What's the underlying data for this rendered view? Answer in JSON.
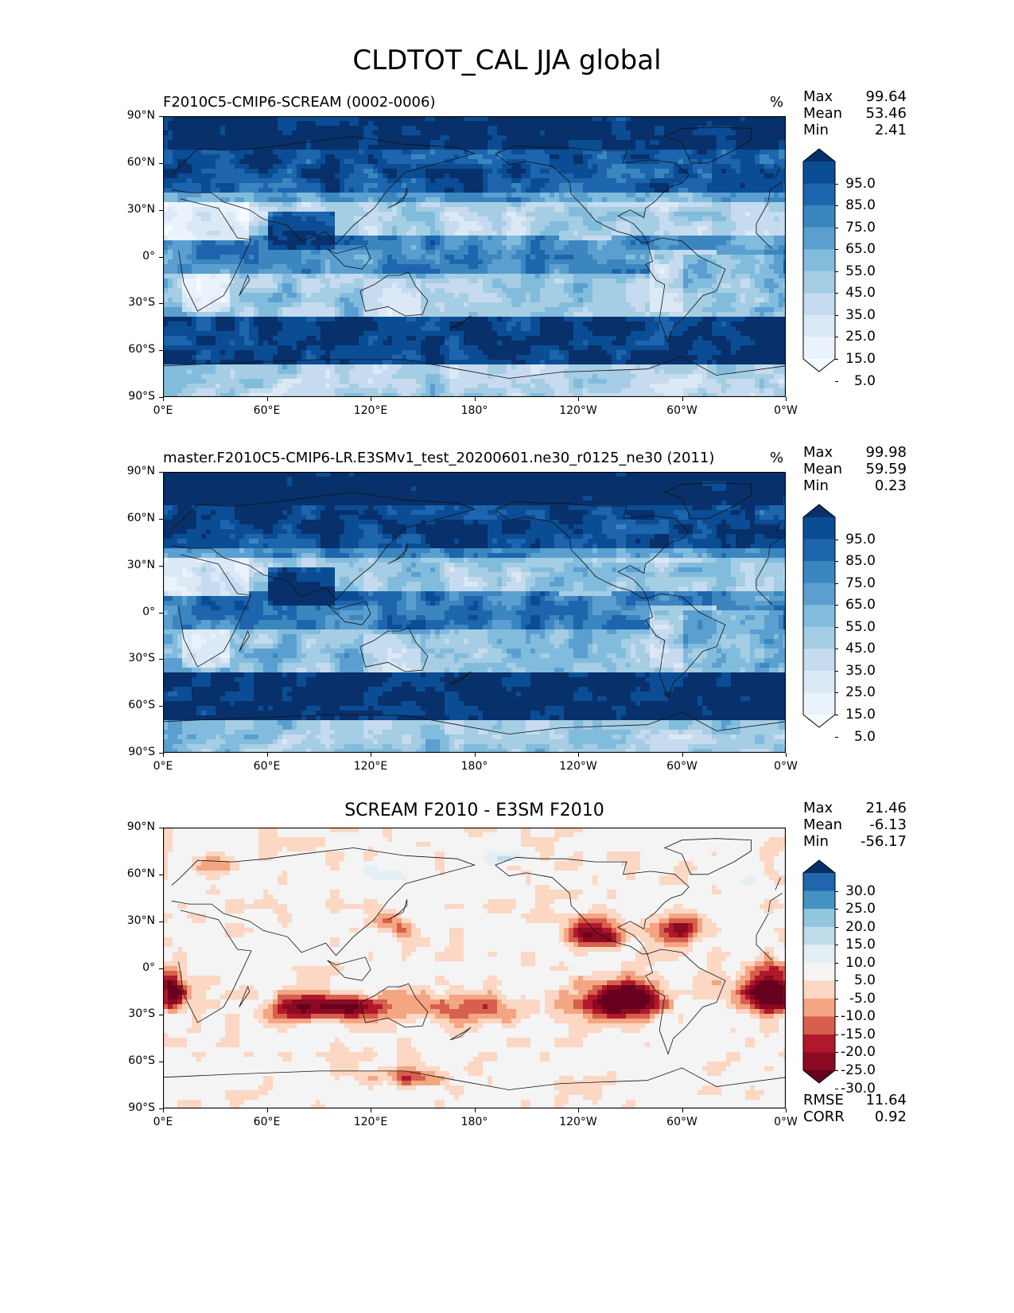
{
  "figure": {
    "title": "CLDTOT_CAL JJA global"
  },
  "panels": [
    {
      "title": "F2010C5-CMIP6-SCREAM (0002-0006)",
      "title_align": "left",
      "units": "%",
      "stats": [
        {
          "label": "Max",
          "value": "99.64"
        },
        {
          "label": "Mean",
          "value": "53.46"
        },
        {
          "label": "Min",
          "value": "2.41"
        }
      ],
      "colorbar": {
        "labels": [
          "95.0",
          "85.0",
          "75.0",
          "65.0",
          "55.0",
          "45.0",
          "35.0",
          "25.0",
          "15.0",
          "5.0"
        ],
        "colors": [
          "#08306b",
          "#0b4d94",
          "#1d65ad",
          "#3c86c0",
          "#5a9fd0",
          "#82bcdd",
          "#a5cde3",
          "#c6dbef",
          "#dbe9f6",
          "#eaf2fb",
          "#f7fbff"
        ]
      },
      "extra_stats": []
    },
    {
      "title": "master.F2010C5-CMIP6-LR.E3SMv1_test_20200601.ne30_r0125_ne30 (2011)",
      "title_align": "left",
      "units": "%",
      "stats": [
        {
          "label": "Max",
          "value": "99.98"
        },
        {
          "label": "Mean",
          "value": "59.59"
        },
        {
          "label": "Min",
          "value": "0.23"
        }
      ],
      "colorbar": {
        "labels": [
          "95.0",
          "85.0",
          "75.0",
          "65.0",
          "55.0",
          "45.0",
          "35.0",
          "25.0",
          "15.0",
          "5.0"
        ],
        "colors": [
          "#08306b",
          "#0b4d94",
          "#1d65ad",
          "#3c86c0",
          "#5a9fd0",
          "#82bcdd",
          "#a5cde3",
          "#c6dbef",
          "#dbe9f6",
          "#eaf2fb",
          "#f7fbff"
        ]
      },
      "extra_stats": []
    },
    {
      "title": "SCREAM F2010 - E3SM F2010",
      "title_align": "center",
      "units": "",
      "stats": [
        {
          "label": "Max",
          "value": "21.46"
        },
        {
          "label": "Mean",
          "value": "-6.13"
        },
        {
          "label": "Min",
          "value": "-56.17"
        }
      ],
      "colorbar": {
        "labels": [
          "30.0",
          "25.0",
          "20.0",
          "15.0",
          "10.0",
          "5.0",
          "-5.0",
          "-10.0",
          "-15.0",
          "-20.0",
          "-25.0",
          "-30.0"
        ],
        "colors": [
          "#053061",
          "#2166ac",
          "#4393c3",
          "#92c5de",
          "#c0dbea",
          "#e4eef5",
          "#f4f4f4",
          "#fbd7c4",
          "#f4a582",
          "#d6604d",
          "#b2182b",
          "#8b0a22",
          "#67001f"
        ]
      },
      "extra_stats": [
        {
          "label": "RMSE",
          "value": "11.64"
        },
        {
          "label": "CORR",
          "value": "0.92"
        }
      ]
    }
  ],
  "axes": {
    "x_ticks": [
      "0°E",
      "60°E",
      "120°E",
      "180°",
      "120°W",
      "60°W",
      "0°W"
    ],
    "y_ticks": [
      "90°N",
      "60°N",
      "30°N",
      "0°",
      "30°S",
      "60°S",
      "90°S"
    ]
  }
}
